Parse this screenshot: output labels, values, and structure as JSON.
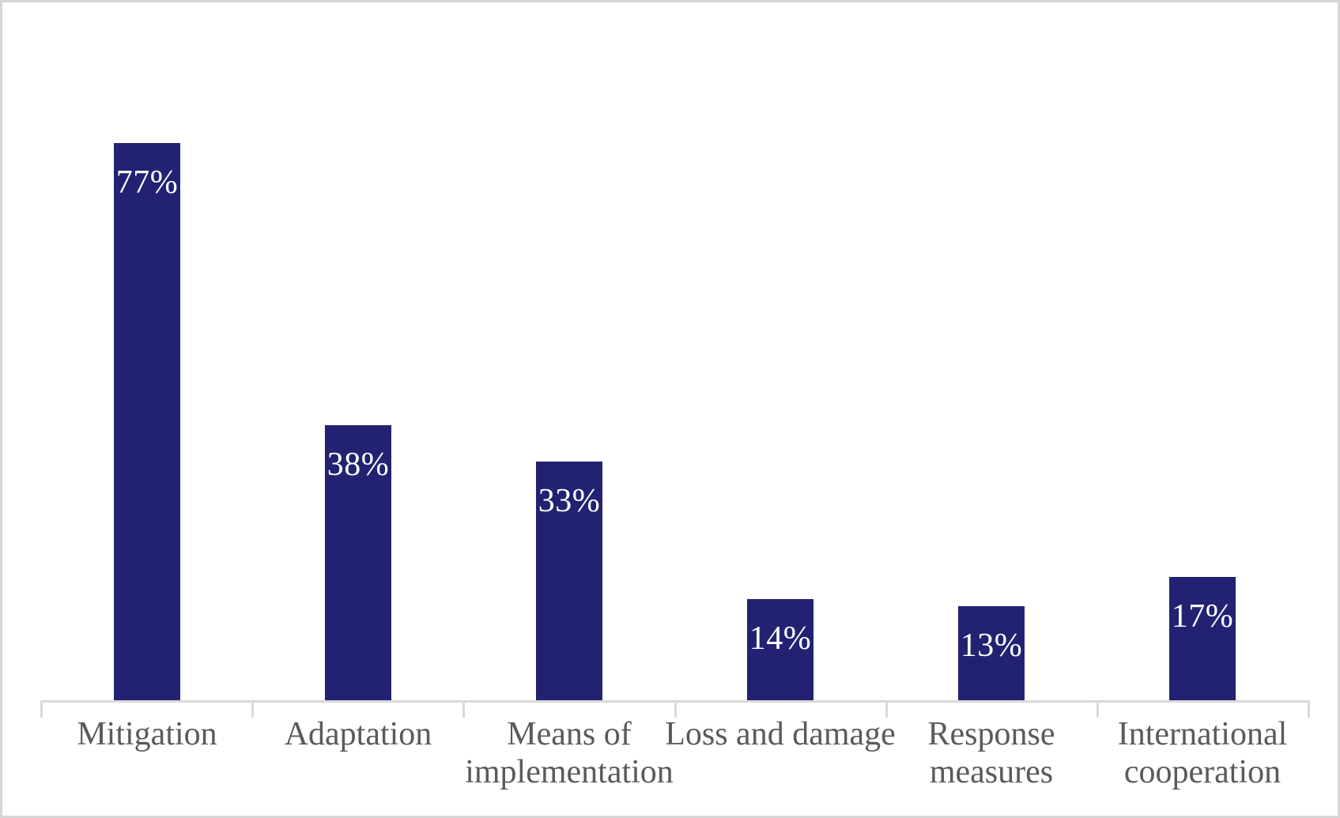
{
  "chart_data": {
    "type": "bar",
    "title": "",
    "xlabel": "",
    "ylabel": "",
    "value_unit": "percent",
    "grid": false,
    "legend": false,
    "categories": [
      "Mitigation",
      "Adaptation",
      "Means of implementation",
      "Loss and damage",
      "Response measures",
      "International cooperation"
    ],
    "values": [
      77,
      38,
      33,
      14,
      13,
      17
    ],
    "data_labels": [
      "77%",
      "38%",
      "33%",
      "14%",
      "13%",
      "17%"
    ],
    "data_labels_position": "inside-top",
    "colors": {
      "bar": "#232272",
      "data_label": "#ffffff",
      "category_label": "#5a5a5a",
      "axis": "#d9d9d9",
      "frame_border": "#d6d6d6",
      "background": "#ffffff"
    }
  }
}
